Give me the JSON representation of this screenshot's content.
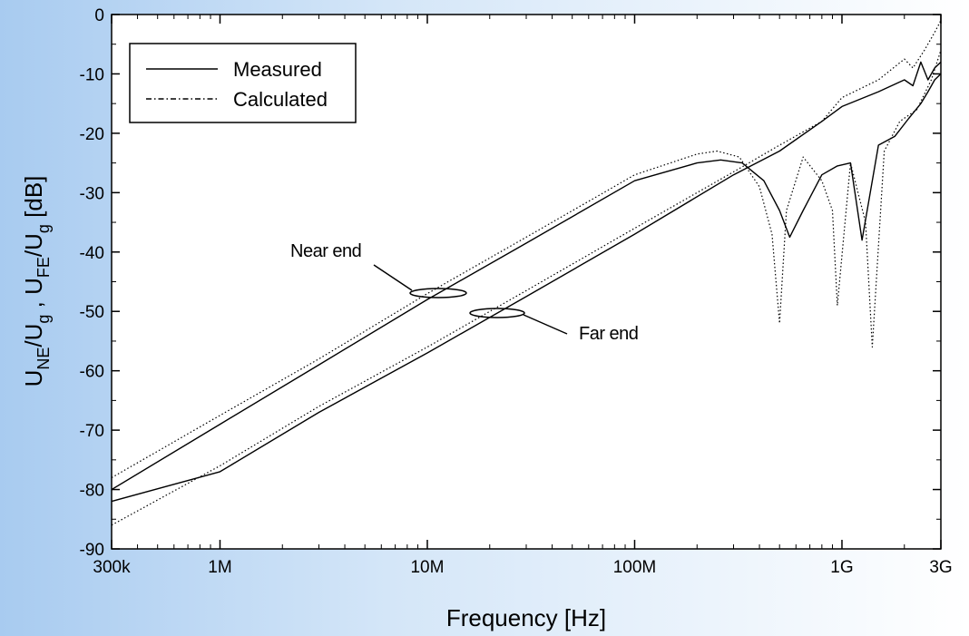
{
  "chart_data": {
    "type": "line",
    "xlabel": "Frequency [Hz]",
    "ylabel_parts": [
      "U",
      "NE",
      "/U",
      "g",
      " , U",
      "FE",
      "/U",
      "g",
      "  [dB]"
    ],
    "x_scale": "log",
    "xlim": [
      300000,
      3000000000
    ],
    "ylim": [
      -90,
      0
    ],
    "x_ticks": [
      {
        "value": 300000,
        "label": "300k"
      },
      {
        "value": 1000000,
        "label": "1M"
      },
      {
        "value": 10000000,
        "label": "10M"
      },
      {
        "value": 100000000,
        "label": "100M"
      },
      {
        "value": 1000000000,
        "label": "1G"
      },
      {
        "value": 3000000000,
        "label": "3G"
      }
    ],
    "y_ticks": [
      0,
      -10,
      -20,
      -30,
      -40,
      -50,
      -60,
      -70,
      -80,
      -90
    ],
    "grid": false,
    "legend_position": "top-left",
    "legend": [
      {
        "label": "Measured",
        "style": "solid"
      },
      {
        "label": "Calculated",
        "style": "dash-dot"
      }
    ],
    "annotations": [
      {
        "text": "Near end",
        "target_x": 11000000,
        "target_y": -46.5
      },
      {
        "text": "Far end",
        "target_x": 22000000,
        "target_y": -50
      }
    ],
    "series": [
      {
        "name": "Measured",
        "group": "Near end",
        "style": "solid",
        "x": [
          300000,
          1000000,
          3000000,
          10000000,
          30000000,
          100000000,
          200000000,
          260000000,
          330000000,
          420000000,
          500000000,
          560000000,
          650000000,
          800000000,
          950000000,
          1100000000,
          1250000000,
          1500000000,
          1800000000,
          2100000000,
          2400000000,
          2600000000,
          2800000000,
          3000000000
        ],
        "y": [
          -80,
          -69,
          -59,
          -48,
          -38.5,
          -28,
          -25,
          -24.5,
          -25,
          -28,
          -33,
          -37.5,
          -33,
          -27,
          -25.5,
          -25,
          -38,
          -22,
          -20.5,
          -17.5,
          -15,
          -13,
          -11,
          -10
        ]
      },
      {
        "name": "Calculated",
        "group": "Near end",
        "style": "dotted",
        "x": [
          300000,
          1000000,
          3000000,
          10000000,
          30000000,
          100000000,
          200000000,
          250000000,
          320000000,
          400000000,
          460000000,
          500000000,
          540000000,
          650000000,
          800000000,
          900000000,
          950000000,
          1100000000,
          1300000000,
          1400000000,
          1600000000,
          1900000000,
          2300000000,
          2700000000,
          3000000000
        ],
        "y": [
          -78,
          -67.5,
          -58,
          -47,
          -37.5,
          -27,
          -23.5,
          -23,
          -24,
          -29,
          -37,
          -52,
          -33,
          -24,
          -28,
          -33,
          -49,
          -25,
          -35,
          -56,
          -23,
          -18,
          -16,
          -11,
          -6
        ]
      },
      {
        "name": "Measured",
        "group": "Far end",
        "style": "solid",
        "x": [
          300000,
          1000000,
          3000000,
          10000000,
          30000000,
          100000000,
          300000000,
          500000000,
          800000000,
          1000000000,
          1500000000,
          2000000000,
          2200000000,
          2400000000,
          2600000000,
          2800000000,
          3000000000
        ],
        "y": [
          -82,
          -77,
          -67,
          -57,
          -47.5,
          -37,
          -27,
          -23,
          -18,
          -15.5,
          -13,
          -11,
          -12,
          -8,
          -11,
          -9,
          -8
        ]
      },
      {
        "name": "Calculated",
        "group": "Far end",
        "style": "dotted",
        "x": [
          300000,
          1000000,
          3000000,
          10000000,
          30000000,
          100000000,
          300000000,
          500000000,
          800000000,
          1000000000,
          1500000000,
          2000000000,
          2200000000,
          2500000000,
          2800000000,
          3000000000
        ],
        "y": [
          -86,
          -76,
          -66,
          -56,
          -46.5,
          -36,
          -26.5,
          -22,
          -18,
          -14,
          -11,
          -7.5,
          -9,
          -6,
          -3,
          -1
        ]
      }
    ]
  }
}
